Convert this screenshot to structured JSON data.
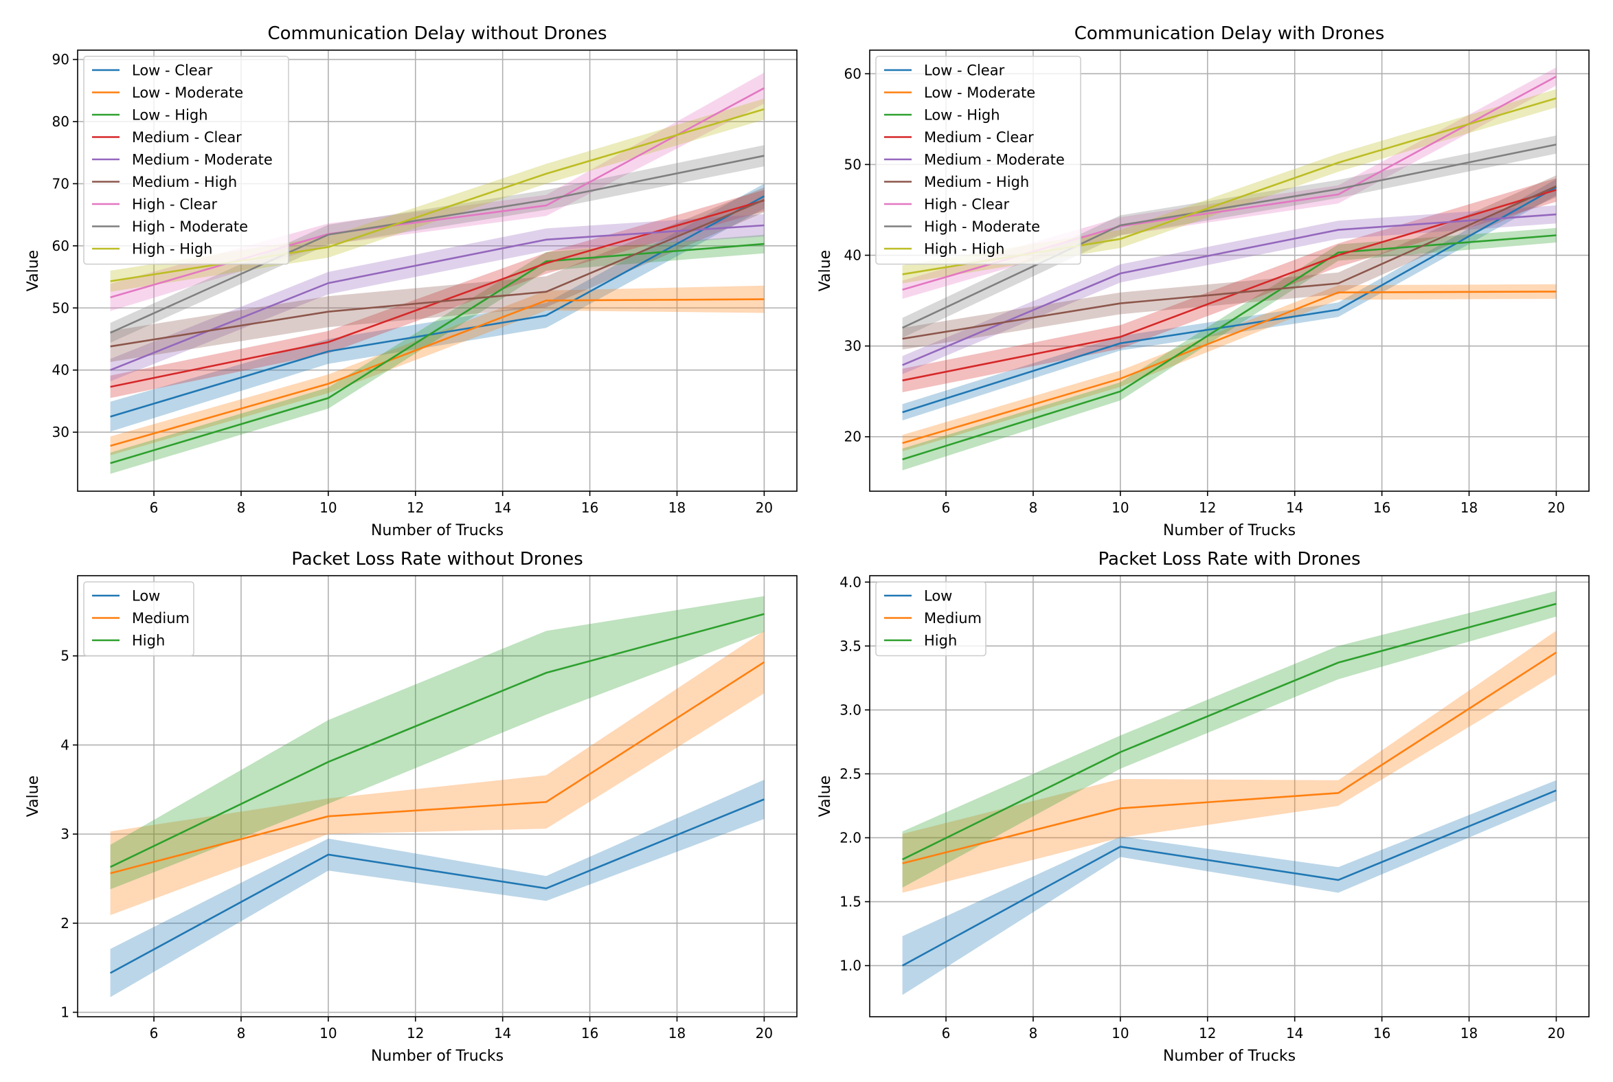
{
  "chart_data": [
    {
      "type": "line",
      "title": "Communication Delay without Drones",
      "xlabel": "Number of Trucks",
      "ylabel": "Value",
      "x": [
        5,
        10,
        15,
        20
      ],
      "xlim": [
        4.25,
        20.75
      ],
      "ylim": [
        20.5,
        91.5
      ],
      "xticks": [
        6,
        8,
        10,
        12,
        14,
        16,
        18,
        20
      ],
      "yticks": [
        30,
        40,
        50,
        60,
        70,
        80,
        90
      ],
      "grid": true,
      "legend": "upper-left",
      "series": [
        {
          "name": "Low - Clear",
          "color": "#1f77b4",
          "values": [
            32.5,
            43.0,
            48.8,
            68.0
          ],
          "band": [
            2.4,
            2.0,
            2.0,
            2.0
          ]
        },
        {
          "name": "Low - Moderate",
          "color": "#ff7f0e",
          "values": [
            27.8,
            37.8,
            51.2,
            51.4
          ],
          "band": [
            1.5,
            1.5,
            1.6,
            2.2
          ]
        },
        {
          "name": "Low - High",
          "color": "#2ca02c",
          "values": [
            25.0,
            35.5,
            57.5,
            60.3
          ],
          "band": [
            1.7,
            1.7,
            1.5,
            1.5
          ]
        },
        {
          "name": "Medium - Clear",
          "color": "#d62728",
          "values": [
            37.3,
            44.5,
            57.2,
            67.3
          ],
          "band": [
            1.8,
            1.8,
            1.7,
            1.7
          ]
        },
        {
          "name": "Medium - Moderate",
          "color": "#9467bd",
          "values": [
            40.0,
            54.0,
            61.0,
            63.3
          ],
          "band": [
            1.8,
            1.8,
            1.8,
            1.8
          ]
        },
        {
          "name": "Medium - High",
          "color": "#8c564b",
          "values": [
            43.8,
            49.4,
            52.6,
            67.4
          ],
          "band": [
            2.5,
            2.5,
            2.5,
            2.0
          ]
        },
        {
          "name": "High - Clear",
          "color": "#e377c2",
          "values": [
            51.7,
            61.9,
            66.5,
            85.4
          ],
          "band": [
            2.2,
            1.7,
            1.7,
            2.5
          ]
        },
        {
          "name": "High - Moderate",
          "color": "#7f7f7f",
          "values": [
            46.0,
            61.8,
            67.4,
            74.5
          ],
          "band": [
            1.6,
            1.6,
            1.6,
            1.7
          ]
        },
        {
          "name": "High - High",
          "color": "#bcbd22",
          "values": [
            54.3,
            59.8,
            71.6,
            82.0
          ],
          "band": [
            1.7,
            1.7,
            1.6,
            1.7
          ]
        }
      ]
    },
    {
      "type": "line",
      "title": "Communication Delay with Drones",
      "xlabel": "Number of Trucks",
      "ylabel": "Value",
      "x": [
        5,
        10,
        15,
        20
      ],
      "xlim": [
        4.25,
        20.75
      ],
      "ylim": [
        14.0,
        62.6
      ],
      "xticks": [
        6,
        8,
        10,
        12,
        14,
        16,
        18,
        20
      ],
      "yticks": [
        20,
        30,
        40,
        50,
        60
      ],
      "grid": true,
      "legend": "upper-left",
      "series": [
        {
          "name": "Low - Clear",
          "color": "#1f77b4",
          "values": [
            22.7,
            30.3,
            34.0,
            47.5
          ],
          "band": [
            0.9,
            0.8,
            0.8,
            0.9
          ]
        },
        {
          "name": "Low - Moderate",
          "color": "#ff7f0e",
          "values": [
            19.3,
            26.4,
            35.9,
            36.0
          ],
          "band": [
            0.9,
            0.9,
            0.8,
            0.8
          ]
        },
        {
          "name": "Low - High",
          "color": "#2ca02c",
          "values": [
            17.5,
            25.0,
            40.3,
            42.2
          ],
          "band": [
            1.2,
            1.0,
            0.9,
            0.8
          ]
        },
        {
          "name": "Medium - Clear",
          "color": "#d62728",
          "values": [
            26.2,
            31.0,
            40.0,
            47.2
          ],
          "band": [
            1.3,
            1.3,
            1.3,
            1.3
          ]
        },
        {
          "name": "Medium - Moderate",
          "color": "#9467bd",
          "values": [
            27.9,
            38.0,
            42.8,
            44.5
          ],
          "band": [
            1.0,
            1.0,
            1.0,
            1.0
          ]
        },
        {
          "name": "Medium - High",
          "color": "#8c564b",
          "values": [
            30.8,
            34.7,
            36.9,
            47.6
          ],
          "band": [
            1.2,
            1.2,
            1.2,
            1.2
          ]
        },
        {
          "name": "High - Clear",
          "color": "#e377c2",
          "values": [
            36.2,
            43.2,
            46.7,
            59.7
          ],
          "band": [
            1.0,
            1.0,
            1.0,
            1.0
          ]
        },
        {
          "name": "High - Moderate",
          "color": "#7f7f7f",
          "values": [
            32.0,
            43.3,
            47.3,
            52.2
          ],
          "band": [
            1.1,
            1.1,
            1.0,
            1.0
          ]
        },
        {
          "name": "High - High",
          "color": "#bcbd22",
          "values": [
            37.9,
            41.8,
            50.2,
            57.3
          ],
          "band": [
            1.0,
            1.0,
            1.0,
            1.0
          ]
        }
      ]
    },
    {
      "type": "line",
      "title": "Packet Loss Rate without Drones",
      "xlabel": "Number of Trucks",
      "ylabel": "Value",
      "x": [
        5,
        10,
        15,
        20
      ],
      "xlim": [
        4.25,
        20.75
      ],
      "ylim": [
        0.95,
        5.9
      ],
      "xticks": [
        6,
        8,
        10,
        12,
        14,
        16,
        18,
        20
      ],
      "yticks": [
        1,
        2,
        3,
        4,
        5
      ],
      "grid": true,
      "legend": "upper-left",
      "series": [
        {
          "name": "Low",
          "color": "#1f77b4",
          "values": [
            1.44,
            2.77,
            2.39,
            3.39
          ],
          "band": [
            0.27,
            0.18,
            0.14,
            0.22
          ]
        },
        {
          "name": "Medium",
          "color": "#ff7f0e",
          "values": [
            2.56,
            3.2,
            3.36,
            4.93
          ],
          "band": [
            0.47,
            0.2,
            0.3,
            0.35
          ]
        },
        {
          "name": "High",
          "color": "#2ca02c",
          "values": [
            2.63,
            3.81,
            4.81,
            5.47
          ],
          "band": [
            0.25,
            0.47,
            0.47,
            0.2
          ]
        }
      ]
    },
    {
      "type": "line",
      "title": "Packet Loss Rate with Drones",
      "xlabel": "Number of Trucks",
      "ylabel": "Value",
      "x": [
        5,
        10,
        15,
        20
      ],
      "xlim": [
        4.25,
        20.75
      ],
      "ylim": [
        0.6,
        4.05
      ],
      "xticks": [
        6,
        8,
        10,
        12,
        14,
        16,
        18,
        20
      ],
      "yticks": [
        1.0,
        1.5,
        2.0,
        2.5,
        3.0,
        3.5,
        4.0
      ],
      "ytick_labels": [
        "1.0",
        "1.5",
        "2.0",
        "2.5",
        "3.0",
        "3.5",
        "4.0"
      ],
      "grid": true,
      "legend": "upper-left",
      "series": [
        {
          "name": "Low",
          "color": "#1f77b4",
          "values": [
            1.0,
            1.93,
            1.67,
            2.37
          ],
          "band": [
            0.23,
            0.08,
            0.1,
            0.08
          ]
        },
        {
          "name": "Medium",
          "color": "#ff7f0e",
          "values": [
            1.8,
            2.23,
            2.35,
            3.45
          ],
          "band": [
            0.23,
            0.23,
            0.1,
            0.17
          ]
        },
        {
          "name": "High",
          "color": "#2ca02c",
          "values": [
            1.83,
            2.67,
            3.37,
            3.83
          ],
          "band": [
            0.22,
            0.13,
            0.13,
            0.1
          ]
        }
      ]
    }
  ]
}
